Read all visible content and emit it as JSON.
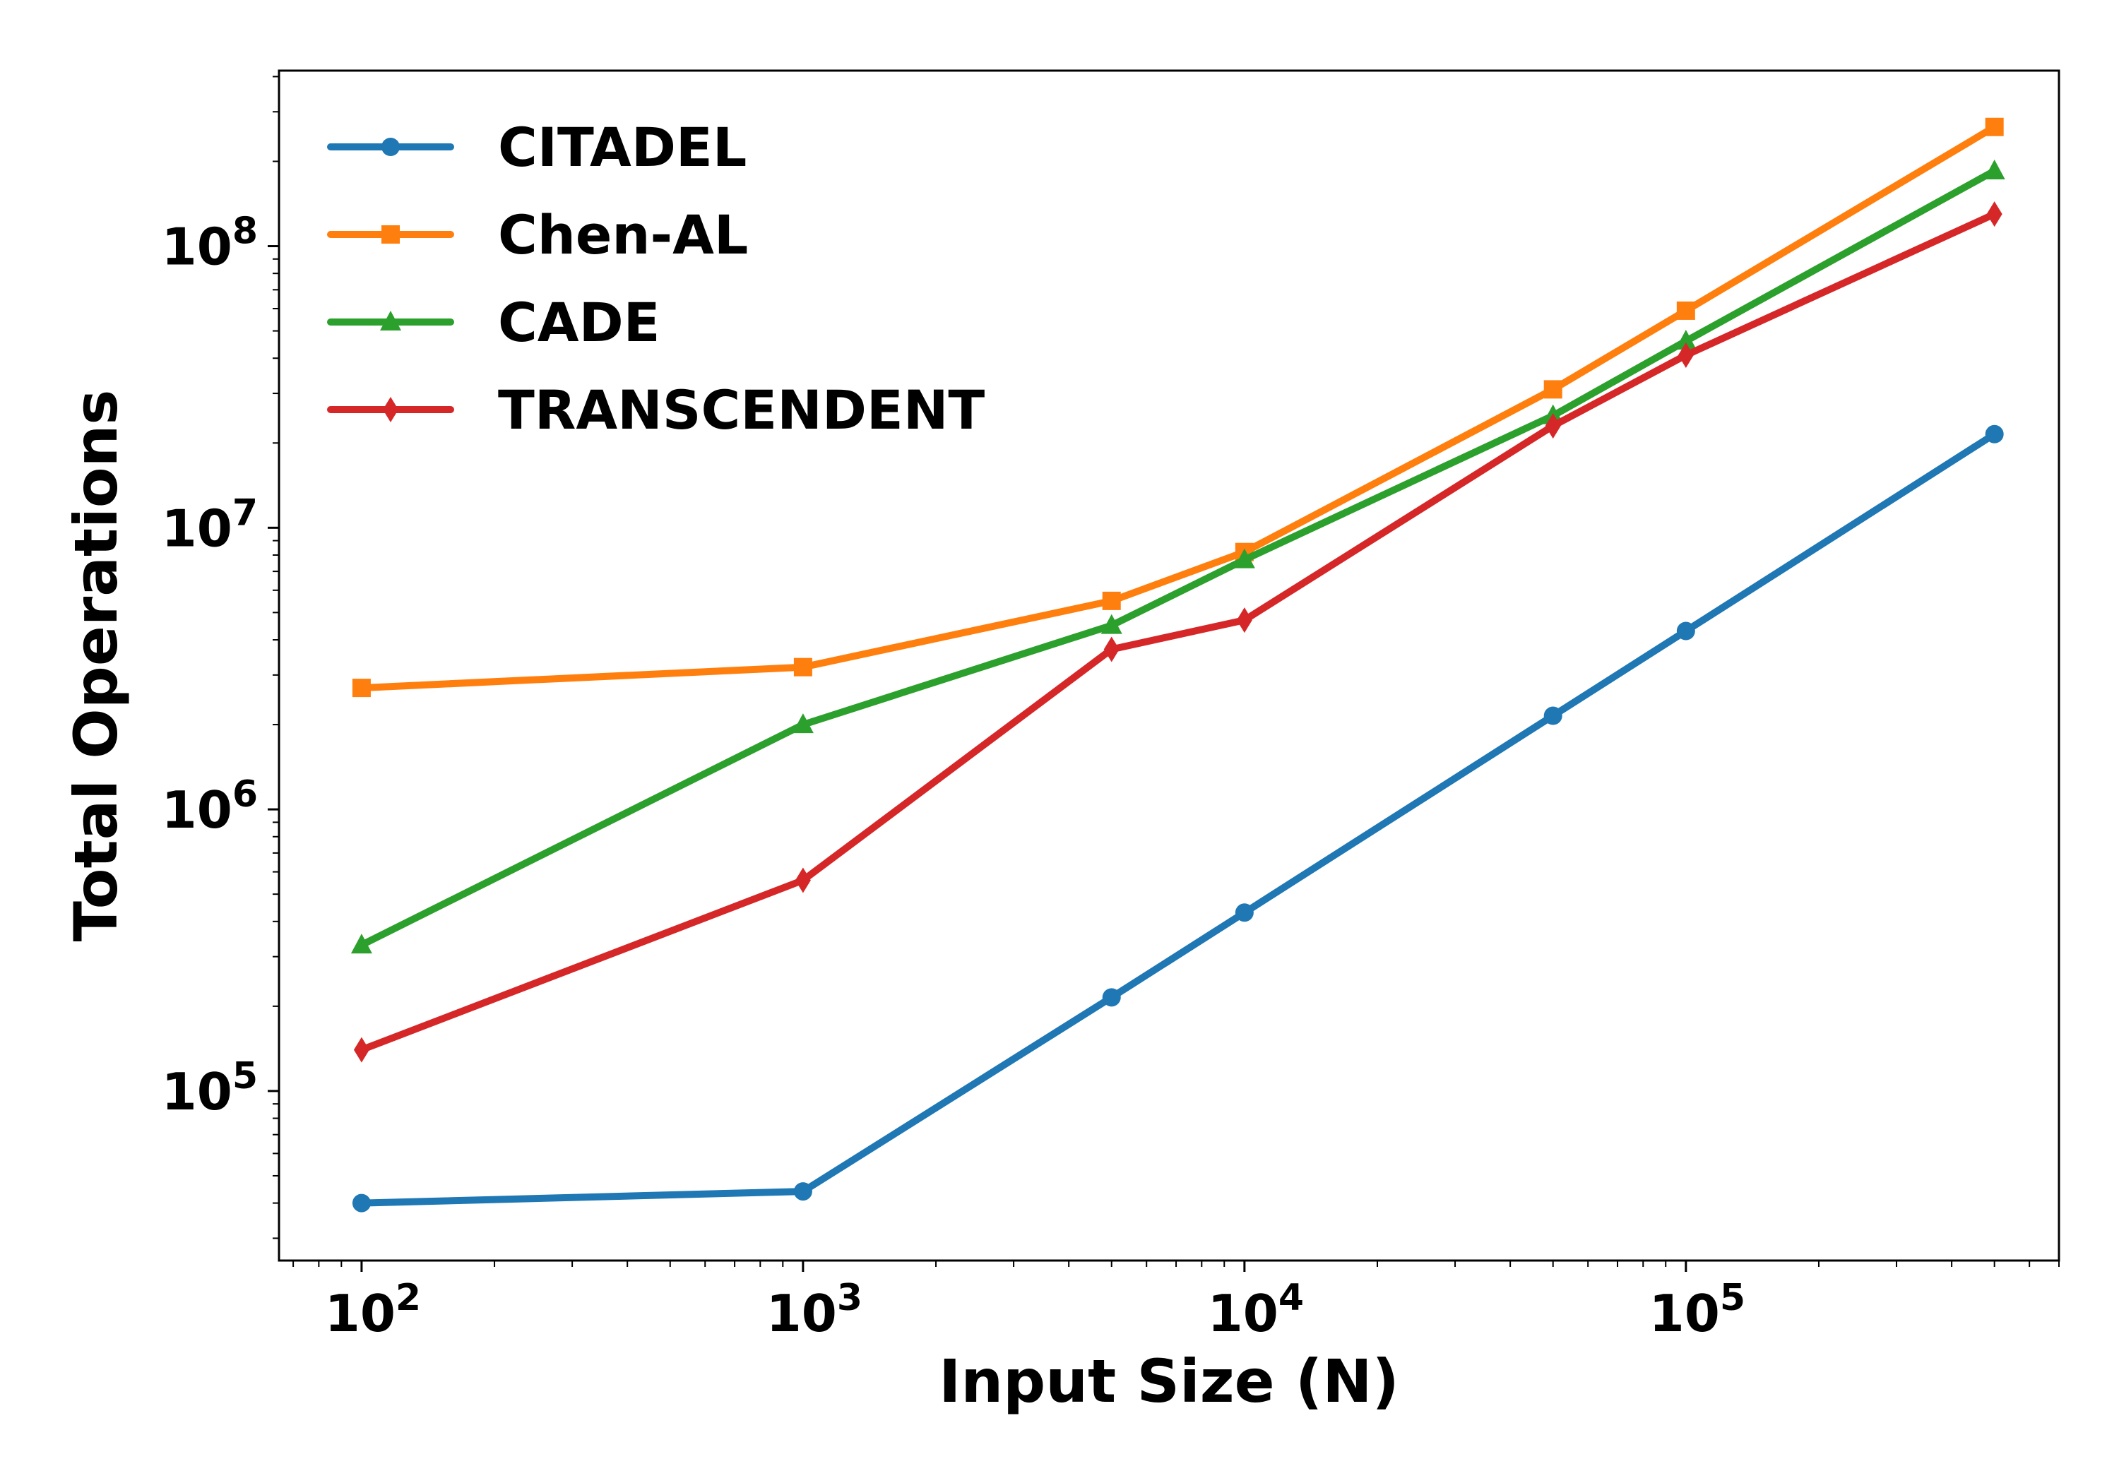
{
  "chart_data": {
    "type": "line",
    "xscale": "log",
    "yscale": "log",
    "xlabel": "Input Size (N)",
    "ylabel": "Total Operations",
    "xlim": [
      65,
      700000
    ],
    "ylim": [
      25000,
      420000000
    ],
    "x_ticks": [
      {
        "value": 100,
        "base": "10",
        "exp": "2"
      },
      {
        "value": 1000,
        "base": "10",
        "exp": "3"
      },
      {
        "value": 10000,
        "base": "10",
        "exp": "4"
      },
      {
        "value": 100000,
        "base": "10",
        "exp": "5"
      }
    ],
    "y_ticks": [
      {
        "value": 100000,
        "base": "10",
        "exp": "5"
      },
      {
        "value": 1000000,
        "base": "10",
        "exp": "6"
      },
      {
        "value": 10000000,
        "base": "10",
        "exp": "7"
      },
      {
        "value": 100000000,
        "base": "10",
        "exp": "8"
      }
    ],
    "grid": false,
    "legend_position": "top-left",
    "x": [
      100,
      1000,
      5000,
      10000,
      50000,
      100000,
      500000
    ],
    "series": [
      {
        "name": "CITADEL",
        "color": "#1f77b4",
        "marker": "circle",
        "values": [
          40000,
          44000,
          215000,
          430000,
          2150000,
          4300000,
          21500000
        ]
      },
      {
        "name": "Chen-AL",
        "color": "#ff7f0e",
        "marker": "square",
        "values": [
          2700000,
          3200000,
          5500000,
          8200000,
          31000000,
          59000000,
          265000000
        ]
      },
      {
        "name": "CADE",
        "color": "#2ca02c",
        "marker": "triangle",
        "values": [
          330000,
          2000000,
          4500000,
          7700000,
          25000000,
          46000000,
          185000000
        ]
      },
      {
        "name": "TRANSCENDENT",
        "color": "#d62728",
        "marker": "diamond",
        "values": [
          140000,
          560000,
          3700000,
          4700000,
          23000000,
          41000000,
          130000000
        ]
      }
    ]
  }
}
